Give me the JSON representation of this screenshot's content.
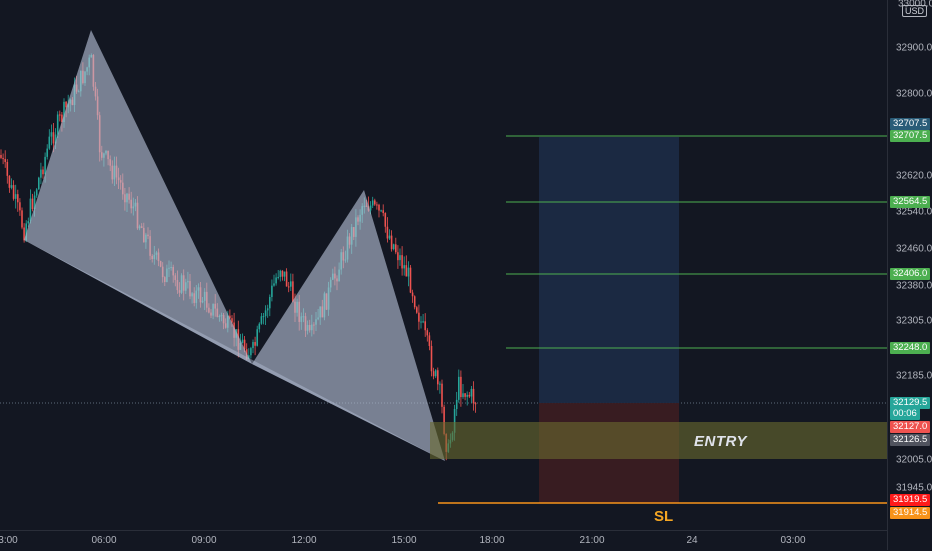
{
  "symbol_currency": "USD",
  "price_axis": {
    "top_partial": "33000.0",
    "ticks": [
      "32900.0",
      "32800.0",
      "32620.0",
      "32540.0",
      "32460.0",
      "32380.0",
      "32305.0",
      "32185.0",
      "32005.0",
      "31945.0"
    ],
    "tags": [
      {
        "label": "32707.5",
        "color": "#2a5c78"
      },
      {
        "label": "32707.5",
        "color": "#4caf50"
      },
      {
        "label": "32564.5",
        "color": "#4caf50"
      },
      {
        "label": "32406.0",
        "color": "#4caf50"
      },
      {
        "label": "32248.0",
        "color": "#4caf50"
      },
      {
        "label": "32129.5",
        "color": "#26a69a"
      },
      {
        "label": "00:06",
        "color": "#26a69a"
      },
      {
        "label": "32127.0",
        "color": "#ef5350"
      },
      {
        "label": "32126.5",
        "color": "#50535e"
      },
      {
        "label": "31919.5",
        "color": "#ff1a1a"
      },
      {
        "label": "31914.5",
        "color": "#f7931a"
      }
    ]
  },
  "time_axis": {
    "ticks": [
      "3:00",
      "06:00",
      "09:00",
      "12:00",
      "15:00",
      "18:00",
      "21:00",
      "24",
      "03:00"
    ]
  },
  "annotations": {
    "entry_label": "ENTRY",
    "sl_label": "SL"
  },
  "colors": {
    "background": "#131722",
    "up_candle": "#26a69a",
    "down_candle": "#ef5350",
    "target_line": "#4caf50",
    "stop_line": "#f7931a",
    "entry_zone": "#5a5a2e",
    "profit_zone": "#1b2a44",
    "loss_zone": "#3a1c22",
    "pattern_fill": "#b6c2d6"
  }
}
